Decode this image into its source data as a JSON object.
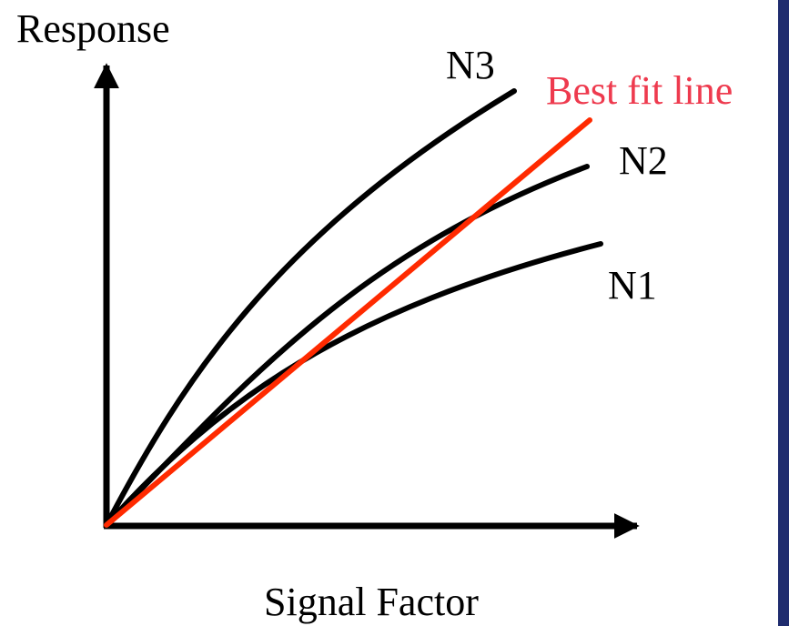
{
  "labels": {
    "y_axis": "Response",
    "x_axis": "Signal Factor",
    "n1": "N1",
    "n2": "N2",
    "n3": "N3",
    "best_fit": "Best fit line"
  },
  "colors": {
    "curve": "#000000",
    "best_fit_line": "#ff2a00",
    "best_fit_text": "#ee3a4e",
    "right_bar": "#1f2c6e",
    "background": "#ffffff"
  }
}
